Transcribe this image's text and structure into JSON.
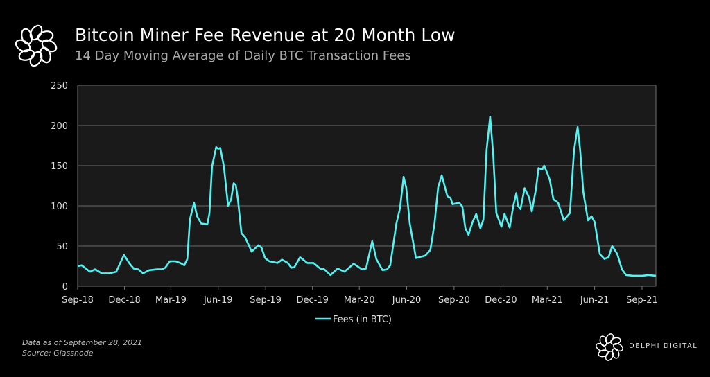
{
  "header": {
    "title": "Bitcoin Miner Fee Revenue at 20 Month Low",
    "subtitle": "14 Day Moving Average of Daily BTC Transaction Fees"
  },
  "footer": {
    "data_note": "Data as of September 28, 2021",
    "source": "Source: Glassnode",
    "brand": "DELPHI DIGITAL"
  },
  "colors": {
    "background": "#000000",
    "plot_background": "#1a1a1a",
    "grid": "#5a5a5a",
    "series": "#55f2f2"
  },
  "chart_data": {
    "type": "line",
    "title": "",
    "xlabel": "",
    "ylabel": "",
    "ylim": [
      0,
      250
    ],
    "yticks": [
      0,
      50,
      100,
      150,
      200,
      250
    ],
    "xlim": [
      "2018-09-01",
      "2021-09-28"
    ],
    "xticks": [
      {
        "date": "2018-09-01",
        "label": "Sep-18"
      },
      {
        "date": "2018-12-01",
        "label": "Dec-18"
      },
      {
        "date": "2019-03-01",
        "label": "Mar-19"
      },
      {
        "date": "2019-06-01",
        "label": "Jun-19"
      },
      {
        "date": "2019-09-01",
        "label": "Sep-19"
      },
      {
        "date": "2019-12-01",
        "label": "Dec-19"
      },
      {
        "date": "2020-03-01",
        "label": "Mar-20"
      },
      {
        "date": "2020-06-01",
        "label": "Jun-20"
      },
      {
        "date": "2020-09-01",
        "label": "Sep-20"
      },
      {
        "date": "2020-12-01",
        "label": "Dec-20"
      },
      {
        "date": "2021-03-01",
        "label": "Mar-21"
      },
      {
        "date": "2021-06-01",
        "label": "Jun-21"
      },
      {
        "date": "2021-09-01",
        "label": "Sep-21"
      }
    ],
    "grid": true,
    "legend_position": "bottom",
    "series": [
      {
        "name": "Fees (in BTC)",
        "points": [
          [
            "2018-09-01",
            25
          ],
          [
            "2018-09-09",
            26
          ],
          [
            "2018-09-25",
            18
          ],
          [
            "2018-10-05",
            21
          ],
          [
            "2018-10-18",
            16
          ],
          [
            "2018-11-02",
            16
          ],
          [
            "2018-11-15",
            18
          ],
          [
            "2018-11-22",
            28
          ],
          [
            "2018-11-30",
            39
          ],
          [
            "2018-12-11",
            28
          ],
          [
            "2018-12-19",
            22
          ],
          [
            "2018-12-28",
            21
          ],
          [
            "2019-01-06",
            16
          ],
          [
            "2019-01-18",
            20
          ],
          [
            "2019-02-03",
            21
          ],
          [
            "2019-02-11",
            21
          ],
          [
            "2019-02-18",
            23
          ],
          [
            "2019-02-27",
            31
          ],
          [
            "2019-03-10",
            31
          ],
          [
            "2019-03-19",
            29
          ],
          [
            "2019-03-27",
            26
          ],
          [
            "2019-04-02",
            34
          ],
          [
            "2019-04-07",
            83
          ],
          [
            "2019-04-15",
            104
          ],
          [
            "2019-04-21",
            87
          ],
          [
            "2019-04-29",
            78
          ],
          [
            "2019-05-11",
            77
          ],
          [
            "2019-05-15",
            91
          ],
          [
            "2019-05-20",
            149
          ],
          [
            "2019-05-28",
            173
          ],
          [
            "2019-06-01",
            171
          ],
          [
            "2019-06-05",
            172
          ],
          [
            "2019-06-12",
            149
          ],
          [
            "2019-06-20",
            100
          ],
          [
            "2019-06-26",
            108
          ],
          [
            "2019-07-01",
            128
          ],
          [
            "2019-07-05",
            126
          ],
          [
            "2019-07-09",
            109
          ],
          [
            "2019-07-16",
            66
          ],
          [
            "2019-07-23",
            61
          ],
          [
            "2019-08-05",
            43
          ],
          [
            "2019-08-18",
            51
          ],
          [
            "2019-08-24",
            48
          ],
          [
            "2019-08-31",
            35
          ],
          [
            "2019-09-08",
            31
          ],
          [
            "2019-09-24",
            29
          ],
          [
            "2019-10-03",
            33
          ],
          [
            "2019-10-14",
            29
          ],
          [
            "2019-10-21",
            23
          ],
          [
            "2019-10-27",
            24
          ],
          [
            "2019-11-07",
            36
          ],
          [
            "2019-11-21",
            29
          ],
          [
            "2019-12-03",
            29
          ],
          [
            "2019-12-16",
            22
          ],
          [
            "2019-12-24",
            21
          ],
          [
            "2020-01-05",
            14
          ],
          [
            "2020-01-19",
            22
          ],
          [
            "2020-02-01",
            18
          ],
          [
            "2020-02-19",
            28
          ],
          [
            "2020-03-06",
            21
          ],
          [
            "2020-03-14",
            22
          ],
          [
            "2020-03-26",
            56
          ],
          [
            "2020-04-03",
            34
          ],
          [
            "2020-04-15",
            20
          ],
          [
            "2020-04-24",
            21
          ],
          [
            "2020-04-30",
            26
          ],
          [
            "2020-05-12",
            78
          ],
          [
            "2020-05-19",
            97
          ],
          [
            "2020-05-26",
            136
          ],
          [
            "2020-05-31",
            123
          ],
          [
            "2020-06-07",
            78
          ],
          [
            "2020-06-19",
            35
          ],
          [
            "2020-07-07",
            38
          ],
          [
            "2020-07-17",
            45
          ],
          [
            "2020-07-25",
            78
          ],
          [
            "2020-08-01",
            123
          ],
          [
            "2020-08-08",
            138
          ],
          [
            "2020-08-19",
            112
          ],
          [
            "2020-08-25",
            110
          ],
          [
            "2020-08-29",
            102
          ],
          [
            "2020-09-11",
            104
          ],
          [
            "2020-09-17",
            99
          ],
          [
            "2020-09-23",
            72
          ],
          [
            "2020-09-29",
            64
          ],
          [
            "2020-10-07",
            80
          ],
          [
            "2020-10-14",
            90
          ],
          [
            "2020-10-22",
            72
          ],
          [
            "2020-10-28",
            83
          ],
          [
            "2020-11-03",
            169
          ],
          [
            "2020-11-10",
            211
          ],
          [
            "2020-11-16",
            164
          ],
          [
            "2020-11-22",
            91
          ],
          [
            "2020-12-02",
            74
          ],
          [
            "2020-12-08",
            90
          ],
          [
            "2020-12-15",
            78
          ],
          [
            "2020-12-18",
            73
          ],
          [
            "2020-12-25",
            100
          ],
          [
            "2020-12-31",
            116
          ],
          [
            "2021-01-03",
            100
          ],
          [
            "2021-01-08",
            96
          ],
          [
            "2021-01-16",
            122
          ],
          [
            "2021-01-25",
            110
          ],
          [
            "2021-01-30",
            93
          ],
          [
            "2021-02-07",
            121
          ],
          [
            "2021-02-12",
            147
          ],
          [
            "2021-02-19",
            145
          ],
          [
            "2021-02-23",
            150
          ],
          [
            "2021-03-02",
            139
          ],
          [
            "2021-03-06",
            132
          ],
          [
            "2021-03-13",
            108
          ],
          [
            "2021-03-22",
            104
          ],
          [
            "2021-04-02",
            82
          ],
          [
            "2021-04-14",
            91
          ],
          [
            "2021-04-22",
            169
          ],
          [
            "2021-04-29",
            198
          ],
          [
            "2021-05-04",
            169
          ],
          [
            "2021-05-10",
            117
          ],
          [
            "2021-05-19",
            82
          ],
          [
            "2021-05-26",
            87
          ],
          [
            "2021-06-01",
            80
          ],
          [
            "2021-06-11",
            40
          ],
          [
            "2021-06-20",
            34
          ],
          [
            "2021-06-28",
            36
          ],
          [
            "2021-07-05",
            50
          ],
          [
            "2021-07-15",
            40
          ],
          [
            "2021-07-24",
            21
          ],
          [
            "2021-08-01",
            14
          ],
          [
            "2021-08-15",
            13
          ],
          [
            "2021-09-02",
            13
          ],
          [
            "2021-09-13",
            14
          ],
          [
            "2021-09-28",
            13
          ]
        ]
      }
    ]
  }
}
